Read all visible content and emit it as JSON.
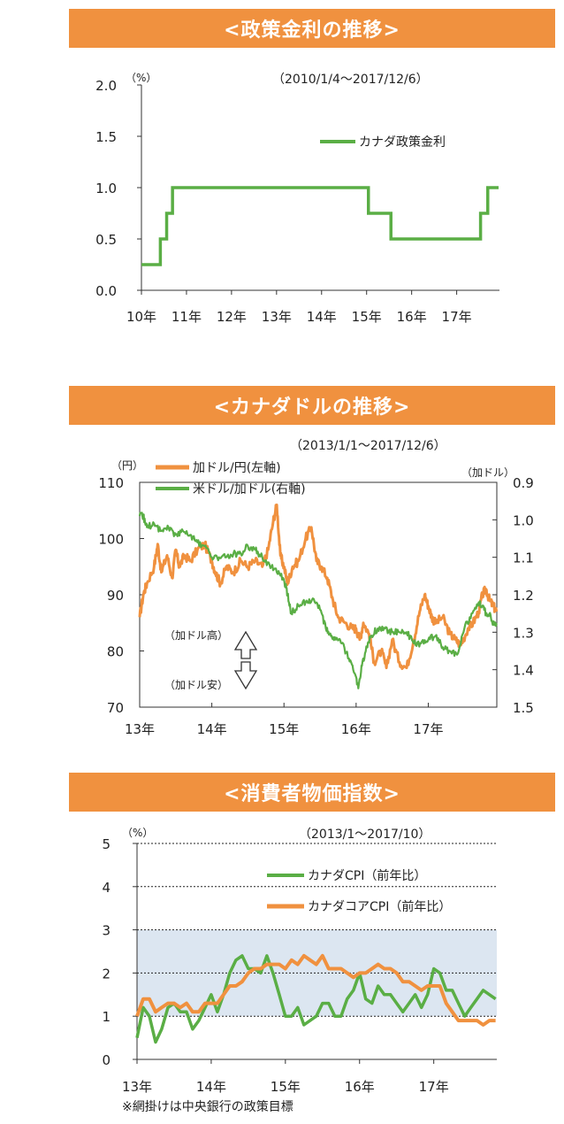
{
  "charts": [
    {
      "banner": "<政策金利の推移>",
      "period": "（2010/1/4～2017/12/6）",
      "unit_left": "（%）",
      "chart_data": {
        "type": "line",
        "title": "",
        "x_ticks": [
          "10年",
          "11年",
          "12年",
          "13年",
          "14年",
          "15年",
          "16年",
          "17年"
        ],
        "y_ticks": [
          "2.0",
          "1.5",
          "1.0",
          "0.5",
          "0.0"
        ],
        "ylim": [
          0,
          2.0
        ],
        "xlim": [
          2010.0,
          2017.95
        ],
        "series": [
          {
            "name": "カナダ政策金利",
            "color": "#5aae45",
            "step": true,
            "x": [
              2010.0,
              2010.42,
              2010.56,
              2010.69,
              2014.8,
              2015.04,
              2015.54,
              2017.53,
              2017.69,
              2017.93
            ],
            "y": [
              0.25,
              0.5,
              0.75,
              1.0,
              1.0,
              0.75,
              0.5,
              0.75,
              1.0,
              1.0
            ]
          }
        ]
      }
    },
    {
      "banner": "<カナダドルの推移>",
      "period": "（2013/1/1～2017/12/6）",
      "unit_left": "（円）",
      "unit_right": "（加ドル）",
      "arrow_up_label": "（加ドル高）",
      "arrow_down_label": "（加ドル安）",
      "chart_data": {
        "type": "line",
        "title": "",
        "x_ticks": [
          "13年",
          "14年",
          "15年",
          "16年",
          "17年"
        ],
        "y_ticks_left": [
          "110",
          "100",
          "90",
          "80",
          "70"
        ],
        "y_ticks_right": [
          "0.9",
          "1.0",
          "1.1",
          "1.2",
          "1.3",
          "1.4",
          "1.5"
        ],
        "ylim_left": [
          70,
          110
        ],
        "ylim_right": [
          1.5,
          0.9
        ],
        "xlim": [
          2013.0,
          2017.95
        ],
        "series": [
          {
            "name": "加ドル/円(左軸)",
            "axis": "left",
            "color": "#f0913f",
            "x": [
              2013.0,
              2013.05,
              2013.1,
              2013.2,
              2013.25,
              2013.3,
              2013.38,
              2013.45,
              2013.5,
              2013.55,
              2013.62,
              2013.7,
              2013.8,
              2013.9,
              2014.0,
              2014.05,
              2014.12,
              2014.2,
              2014.3,
              2014.4,
              2014.5,
              2014.6,
              2014.7,
              2014.78,
              2014.85,
              2014.9,
              2014.95,
              2015.0,
              2015.05,
              2015.12,
              2015.2,
              2015.3,
              2015.38,
              2015.45,
              2015.52,
              2015.6,
              2015.68,
              2015.75,
              2015.85,
              2015.95,
              2016.0,
              2016.05,
              2016.1,
              2016.18,
              2016.25,
              2016.35,
              2016.42,
              2016.5,
              2016.6,
              2016.7,
              2016.8,
              2016.88,
              2016.95,
              2017.0,
              2017.05,
              2017.1,
              2017.2,
              2017.3,
              2017.38,
              2017.45,
              2017.55,
              2017.62,
              2017.7,
              2017.75,
              2017.8,
              2017.85,
              2017.9,
              2017.95
            ],
            "y": [
              86,
              90,
              92,
              95,
              99,
              94,
              97,
              93,
              98,
              95,
              97,
              96,
              98,
              99,
              96,
              94,
              92,
              95,
              94,
              96,
              95,
              96,
              95,
              98,
              103,
              106,
              97,
              95,
              92,
              95,
              96,
              100,
              102,
              96,
              95,
              93,
              89,
              86,
              85,
              84,
              84,
              82,
              85,
              83,
              78,
              80,
              77,
              82,
              78,
              77,
              82,
              87,
              90,
              88,
              86,
              85,
              86,
              83,
              82,
              81,
              84,
              85,
              87,
              90,
              91,
              89,
              88,
              87
            ]
          },
          {
            "name": "米ドル/加ドル(右軸)",
            "axis": "right",
            "color": "#5aae45",
            "x": [
              2013.0,
              2013.05,
              2013.1,
              2013.2,
              2013.3,
              2013.4,
              2013.5,
              2013.6,
              2013.7,
              2013.8,
              2013.9,
              2014.0,
              2014.1,
              2014.2,
              2014.3,
              2014.4,
              2014.5,
              2014.6,
              2014.7,
              2014.8,
              2014.9,
              2015.0,
              2015.05,
              2015.1,
              2015.2,
              2015.3,
              2015.4,
              2015.5,
              2015.58,
              2015.65,
              2015.72,
              2015.8,
              2015.9,
              2015.98,
              2016.03,
              2016.08,
              2016.15,
              2016.2,
              2016.3,
              2016.4,
              2016.5,
              2016.6,
              2016.7,
              2016.8,
              2016.9,
              2017.0,
              2017.1,
              2017.2,
              2017.3,
              2017.4,
              2017.5,
              2017.6,
              2017.7,
              2017.75,
              2017.8,
              2017.85,
              2017.9,
              2017.95
            ],
            "y": [
              0.99,
              0.99,
              1.02,
              1.01,
              1.03,
              1.02,
              1.04,
              1.03,
              1.04,
              1.06,
              1.07,
              1.1,
              1.1,
              1.1,
              1.09,
              1.09,
              1.07,
              1.08,
              1.1,
              1.12,
              1.14,
              1.16,
              1.2,
              1.25,
              1.23,
              1.22,
              1.21,
              1.24,
              1.29,
              1.31,
              1.32,
              1.33,
              1.37,
              1.41,
              1.45,
              1.39,
              1.34,
              1.31,
              1.29,
              1.29,
              1.3,
              1.3,
              1.3,
              1.33,
              1.33,
              1.32,
              1.31,
              1.34,
              1.35,
              1.36,
              1.29,
              1.25,
              1.22,
              1.23,
              1.25,
              1.25,
              1.28,
              1.28
            ]
          }
        ]
      }
    },
    {
      "banner": "<消費者物価指数>",
      "period": "（2013/1～2017/10）",
      "unit_left": "（%）",
      "footnote": "※網掛けは中央銀行の政策目標",
      "chart_data": {
        "type": "line",
        "title": "",
        "x_ticks": [
          "13年",
          "14年",
          "15年",
          "16年",
          "17年"
        ],
        "y_ticks": [
          "5",
          "4",
          "3",
          "2",
          "1",
          "0"
        ],
        "ylim": [
          0,
          5
        ],
        "xlim": [
          2013.0,
          2017.85
        ],
        "target_band": [
          1,
          3
        ],
        "series": [
          {
            "name": "カナダCPI（前年比）",
            "color": "#5aae45",
            "x": [
              2013.0,
              2013.083,
              2013.167,
              2013.25,
              2013.333,
              2013.417,
              2013.5,
              2013.583,
              2013.667,
              2013.75,
              2013.833,
              2013.917,
              2014.0,
              2014.083,
              2014.167,
              2014.25,
              2014.333,
              2014.417,
              2014.5,
              2014.583,
              2014.667,
              2014.75,
              2014.833,
              2014.917,
              2015.0,
              2015.083,
              2015.167,
              2015.25,
              2015.333,
              2015.417,
              2015.5,
              2015.583,
              2015.667,
              2015.75,
              2015.833,
              2015.917,
              2016.0,
              2016.083,
              2016.167,
              2016.25,
              2016.333,
              2016.417,
              2016.5,
              2016.583,
              2016.667,
              2016.75,
              2016.833,
              2016.917,
              2017.0,
              2017.083,
              2017.167,
              2017.25,
              2017.333,
              2017.417,
              2017.5,
              2017.583,
              2017.667,
              2017.75,
              2017.833
            ],
            "y": [
              0.5,
              1.2,
              1.0,
              0.4,
              0.7,
              1.2,
              1.3,
              1.1,
              1.1,
              0.7,
              0.9,
              1.2,
              1.5,
              1.1,
              1.5,
              2.0,
              2.3,
              2.4,
              2.1,
              2.1,
              2.0,
              2.4,
              2.0,
              1.5,
              1.0,
              1.0,
              1.2,
              0.8,
              0.9,
              1.0,
              1.3,
              1.3,
              1.0,
              1.0,
              1.4,
              1.6,
              2.0,
              1.4,
              1.3,
              1.7,
              1.5,
              1.5,
              1.3,
              1.1,
              1.3,
              1.5,
              1.2,
              1.5,
              2.1,
              2.0,
              1.6,
              1.6,
              1.3,
              1.0,
              1.2,
              1.4,
              1.6,
              1.5,
              1.4
            ]
          },
          {
            "name": "カナダコアCPI（前年比）",
            "color": "#f0913f",
            "x": [
              2013.0,
              2013.083,
              2013.167,
              2013.25,
              2013.333,
              2013.417,
              2013.5,
              2013.583,
              2013.667,
              2013.75,
              2013.833,
              2013.917,
              2014.0,
              2014.083,
              2014.167,
              2014.25,
              2014.333,
              2014.417,
              2014.5,
              2014.583,
              2014.667,
              2014.75,
              2014.833,
              2014.917,
              2015.0,
              2015.083,
              2015.167,
              2015.25,
              2015.333,
              2015.417,
              2015.5,
              2015.583,
              2015.667,
              2015.75,
              2015.833,
              2015.917,
              2016.0,
              2016.083,
              2016.167,
              2016.25,
              2016.333,
              2016.417,
              2016.5,
              2016.583,
              2016.667,
              2016.75,
              2016.833,
              2016.917,
              2017.0,
              2017.083,
              2017.167,
              2017.25,
              2017.333,
              2017.417,
              2017.5,
              2017.583,
              2017.667,
              2017.75,
              2017.833
            ],
            "y": [
              1.0,
              1.4,
              1.4,
              1.1,
              1.2,
              1.3,
              1.3,
              1.2,
              1.3,
              1.1,
              1.1,
              1.3,
              1.3,
              1.3,
              1.5,
              1.7,
              1.7,
              1.8,
              2.0,
              2.1,
              2.1,
              2.2,
              2.2,
              2.2,
              2.1,
              2.3,
              2.2,
              2.4,
              2.3,
              2.2,
              2.4,
              2.1,
              2.1,
              2.1,
              2.0,
              1.9,
              2.0,
              2.0,
              2.1,
              2.2,
              2.1,
              2.1,
              2.0,
              1.8,
              1.8,
              1.7,
              1.6,
              1.7,
              1.7,
              1.7,
              1.3,
              1.1,
              0.9,
              0.9,
              0.9,
              0.9,
              0.8,
              0.9,
              0.9
            ]
          }
        ]
      }
    }
  ]
}
